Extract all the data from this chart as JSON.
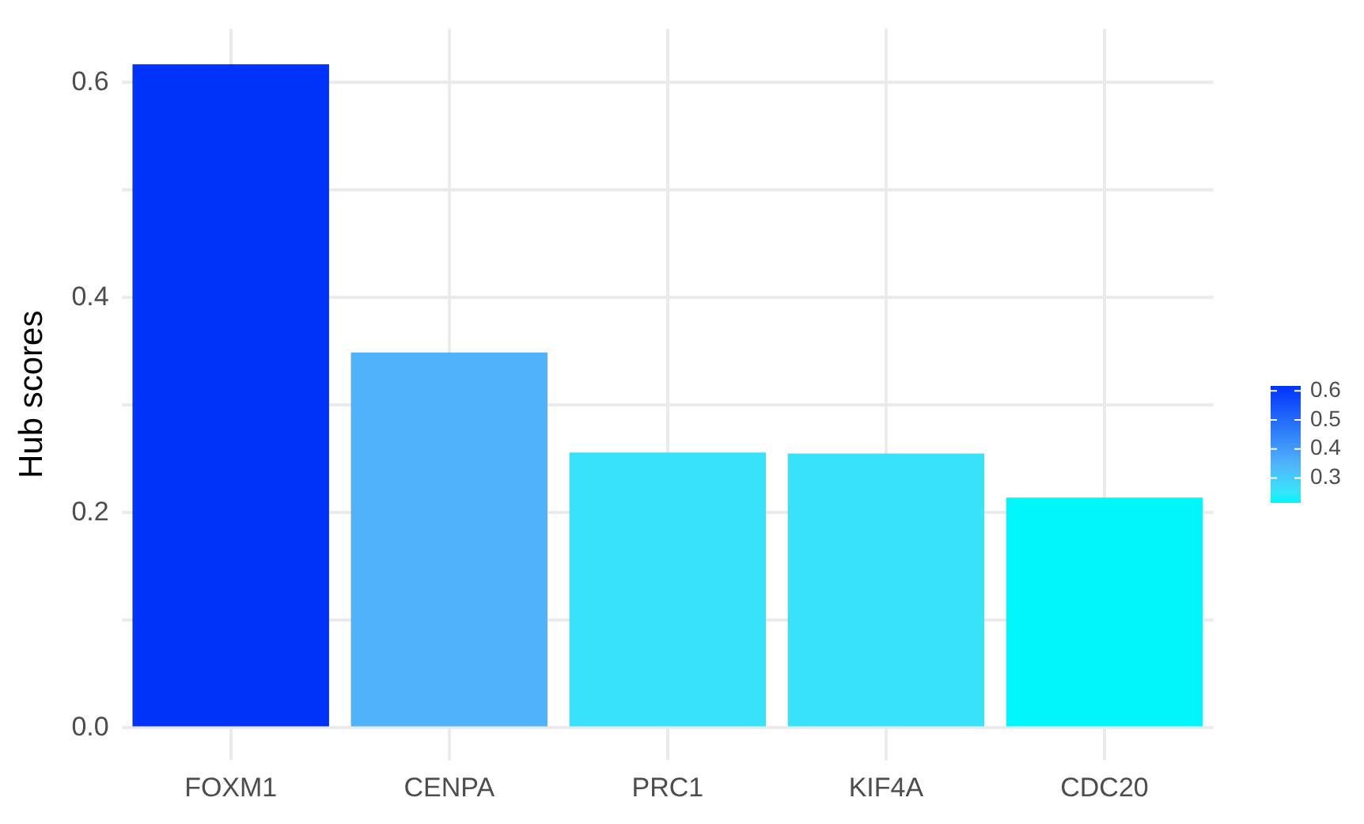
{
  "chart_data": {
    "type": "bar",
    "ylabel": "Hub scores",
    "categories": [
      "FOXM1",
      "CENPA",
      "PRC1",
      "KIF4A",
      "CDC20"
    ],
    "values": [
      0.617,
      0.349,
      0.256,
      0.255,
      0.214
    ],
    "colors": [
      "#0033fa",
      "#4fb3fb",
      "#38e3fa",
      "#38e3fa",
      "#00f7fb"
    ],
    "ylim": [
      -0.03,
      0.65
    ],
    "yticks": [
      {
        "value": 0,
        "label": "0.0"
      },
      {
        "value": 0.1,
        "label": null
      },
      0.2,
      {
        "value": 0.3,
        "label": null
      },
      0.4,
      {
        "value": 0.5,
        "label": null
      },
      0.6
    ],
    "clim": [
      0.214,
      0.617
    ],
    "cticks": [
      0.3,
      0.4,
      0.5,
      0.6
    ],
    "grid": true,
    "legend": false
  }
}
